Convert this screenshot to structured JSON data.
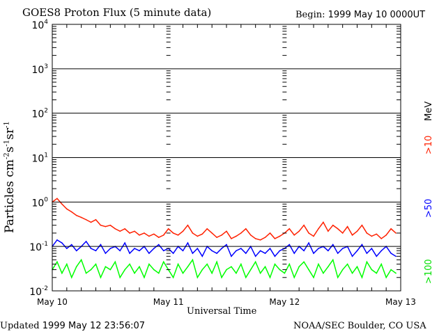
{
  "chart_data": {
    "type": "line",
    "title": "GOES8 Proton Flux (5 minute data)",
    "begin_label": "Begin:",
    "begin_value": "1999 May 10 0000UT",
    "xlabel": "Universal Time",
    "ylabel": "Particles cm",
    "ylabel_units": [
      "-2",
      "s",
      "-1",
      "sr",
      "-1"
    ],
    "yscale": "log",
    "ylim": [
      0.01,
      10000
    ],
    "ytick_exponents": [
      "4",
      "3",
      "2",
      "1",
      "0",
      "-1",
      "-2"
    ],
    "xlim": [
      0,
      72
    ],
    "xtick_labels": [
      "May 10",
      "May 11",
      "May 12",
      "May 13"
    ],
    "grid": true,
    "series": [
      {
        "name": ">10",
        "unit": "MeV",
        "color": "#ff2000",
        "values": [
          1.0,
          1.2,
          0.9,
          0.7,
          0.6,
          0.5,
          0.45,
          0.4,
          0.35,
          0.4,
          0.3,
          0.28,
          0.3,
          0.25,
          0.22,
          0.25,
          0.2,
          0.22,
          0.18,
          0.2,
          0.17,
          0.19,
          0.16,
          0.18,
          0.25,
          0.2,
          0.18,
          0.22,
          0.3,
          0.2,
          0.17,
          0.19,
          0.25,
          0.2,
          0.16,
          0.18,
          0.22,
          0.15,
          0.17,
          0.2,
          0.25,
          0.18,
          0.15,
          0.14,
          0.16,
          0.2,
          0.15,
          0.17,
          0.2,
          0.25,
          0.18,
          0.22,
          0.3,
          0.2,
          0.17,
          0.25,
          0.35,
          0.22,
          0.3,
          0.25,
          0.2,
          0.28,
          0.18,
          0.22,
          0.3,
          0.2,
          0.17,
          0.19,
          0.15,
          0.18,
          0.25,
          0.2
        ]
      },
      {
        "name": ">50",
        "color": "#0000ff",
        "values": [
          0.1,
          0.14,
          0.12,
          0.09,
          0.11,
          0.08,
          0.1,
          0.13,
          0.09,
          0.08,
          0.11,
          0.07,
          0.09,
          0.1,
          0.08,
          0.12,
          0.07,
          0.09,
          0.08,
          0.1,
          0.07,
          0.09,
          0.11,
          0.08,
          0.09,
          0.07,
          0.1,
          0.08,
          0.12,
          0.07,
          0.09,
          0.06,
          0.1,
          0.08,
          0.07,
          0.09,
          0.11,
          0.06,
          0.08,
          0.09,
          0.07,
          0.1,
          0.06,
          0.08,
          0.07,
          0.09,
          0.06,
          0.08,
          0.09,
          0.11,
          0.07,
          0.1,
          0.08,
          0.12,
          0.07,
          0.09,
          0.1,
          0.08,
          0.11,
          0.07,
          0.09,
          0.1,
          0.06,
          0.08,
          0.11,
          0.07,
          0.09,
          0.06,
          0.08,
          0.1,
          0.07,
          0.06
        ]
      },
      {
        "name": ">100",
        "color": "#00ff00",
        "values": [
          0.03,
          0.045,
          0.025,
          0.04,
          0.02,
          0.035,
          0.05,
          0.025,
          0.03,
          0.04,
          0.02,
          0.035,
          0.03,
          0.045,
          0.02,
          0.03,
          0.04,
          0.025,
          0.035,
          0.02,
          0.04,
          0.03,
          0.025,
          0.045,
          0.03,
          0.02,
          0.04,
          0.025,
          0.035,
          0.05,
          0.02,
          0.03,
          0.04,
          0.025,
          0.045,
          0.02,
          0.03,
          0.035,
          0.025,
          0.04,
          0.02,
          0.03,
          0.045,
          0.025,
          0.035,
          0.02,
          0.04,
          0.03,
          0.025,
          0.04,
          0.02,
          0.035,
          0.045,
          0.03,
          0.02,
          0.04,
          0.025,
          0.035,
          0.05,
          0.02,
          0.03,
          0.04,
          0.025,
          0.035,
          0.02,
          0.045,
          0.03,
          0.025,
          0.04,
          0.02,
          0.03,
          0.025
        ]
      }
    ]
  },
  "footer": {
    "updated_label": "Updated",
    "updated_value": "1999 May 12 23:56:07",
    "credit": "NOAA/SEC Boulder, CO USA"
  }
}
